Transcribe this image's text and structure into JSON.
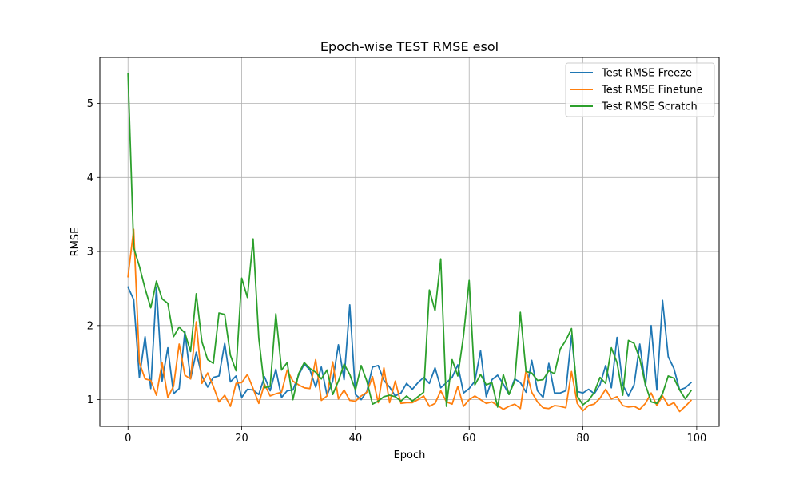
{
  "chart_data": {
    "type": "line",
    "title": "Epoch-wise TEST RMSE esol",
    "xlabel": "Epoch",
    "ylabel": "RMSE",
    "xlim": [
      -4.95,
      103.95
    ],
    "ylim": [
      0.64,
      5.62
    ],
    "xticks": [
      0,
      20,
      40,
      60,
      80,
      100
    ],
    "yticks": [
      1,
      2,
      3,
      4,
      5
    ],
    "grid": true,
    "legend_position": "top-right",
    "series": [
      {
        "name": "Test RMSE Freeze",
        "color": "#1f77b4",
        "values": [
          2.52,
          2.35,
          1.3,
          1.85,
          1.15,
          2.52,
          1.25,
          1.7,
          1.08,
          1.15,
          1.92,
          1.28,
          1.64,
          1.32,
          1.17,
          1.3,
          1.32,
          1.76,
          1.24,
          1.32,
          1.03,
          1.14,
          1.13,
          1.07,
          1.31,
          1.12,
          1.41,
          1.03,
          1.12,
          1.13,
          1.33,
          1.48,
          1.4,
          1.17,
          1.44,
          1.06,
          1.25,
          1.74,
          1.27,
          2.28,
          1.07,
          1.0,
          1.11,
          1.44,
          1.46,
          1.26,
          1.17,
          1.05,
          1.09,
          1.22,
          1.14,
          1.23,
          1.3,
          1.22,
          1.43,
          1.16,
          1.23,
          1.3,
          1.47,
          1.09,
          1.15,
          1.25,
          1.66,
          1.04,
          1.27,
          1.33,
          1.21,
          1.07,
          1.28,
          1.23,
          1.1,
          1.53,
          1.12,
          1.03,
          1.49,
          1.09,
          1.09,
          1.12,
          1.87,
          1.11,
          1.09,
          1.14,
          1.08,
          1.2,
          1.46,
          1.16,
          1.84,
          1.2,
          1.05,
          1.2,
          1.75,
          1.18,
          2.0,
          1.13,
          2.34,
          1.58,
          1.42,
          1.13,
          1.16,
          1.23
        ]
      },
      {
        "name": "Test RMSE Finetune",
        "color": "#ff7f0e",
        "values": [
          2.66,
          3.3,
          1.5,
          1.28,
          1.26,
          1.06,
          1.5,
          1.03,
          1.18,
          1.75,
          1.33,
          1.28,
          2.05,
          1.22,
          1.36,
          1.18,
          0.97,
          1.06,
          0.91,
          1.22,
          1.23,
          1.34,
          1.15,
          0.95,
          1.21,
          1.05,
          1.08,
          1.1,
          1.4,
          1.25,
          1.2,
          1.16,
          1.15,
          1.54,
          0.99,
          1.05,
          1.51,
          1.01,
          1.13,
          0.99,
          0.98,
          1.05,
          1.1,
          1.31,
          0.96,
          1.43,
          0.96,
          1.25,
          0.95,
          0.96,
          0.96,
          1.0,
          1.05,
          0.91,
          0.95,
          1.12,
          0.97,
          0.94,
          1.18,
          0.91,
          1.0,
          1.05,
          1.0,
          0.95,
          0.97,
          0.92,
          0.87,
          0.91,
          0.94,
          0.88,
          1.4,
          1.1,
          0.97,
          0.89,
          0.88,
          0.92,
          0.91,
          0.89,
          1.38,
          0.95,
          0.85,
          0.92,
          0.94,
          1.02,
          1.14,
          1.01,
          1.04,
          0.92,
          0.9,
          0.91,
          0.87,
          0.95,
          1.09,
          0.92,
          1.05,
          0.92,
          0.96,
          0.84,
          0.91,
          0.99
        ]
      },
      {
        "name": "Test RMSE Scratch",
        "color": "#2ca02c",
        "values": [
          5.4,
          3.05,
          2.8,
          2.5,
          2.24,
          2.6,
          2.36,
          2.3,
          1.85,
          1.98,
          1.9,
          1.65,
          2.43,
          1.78,
          1.54,
          1.49,
          2.17,
          2.15,
          1.6,
          1.39,
          2.64,
          2.38,
          3.17,
          1.83,
          1.16,
          1.18,
          2.16,
          1.4,
          1.5,
          1.0,
          1.35,
          1.5,
          1.42,
          1.37,
          1.28,
          1.4,
          1.07,
          1.25,
          1.48,
          1.34,
          1.13,
          1.46,
          1.25,
          0.94,
          0.98,
          1.04,
          1.06,
          1.04,
          0.98,
          1.05,
          0.98,
          1.04,
          1.1,
          2.48,
          2.2,
          2.9,
          0.91,
          1.54,
          1.32,
          1.86,
          2.61,
          1.2,
          1.34,
          1.2,
          1.23,
          0.9,
          1.34,
          1.07,
          1.25,
          2.18,
          1.38,
          1.36,
          1.26,
          1.27,
          1.39,
          1.35,
          1.68,
          1.8,
          1.96,
          1.05,
          0.93,
          0.99,
          1.1,
          1.3,
          1.22,
          1.7,
          1.5,
          1.06,
          1.8,
          1.76,
          1.55,
          1.2,
          0.97,
          0.95,
          1.08,
          1.32,
          1.29,
          1.13,
          1.01,
          1.12
        ]
      }
    ]
  }
}
